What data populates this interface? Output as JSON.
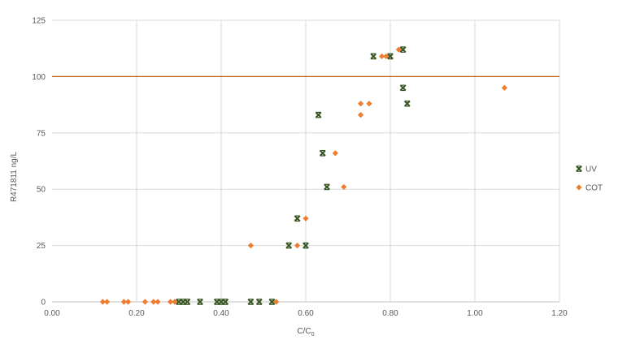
{
  "chart_data": {
    "type": "scatter",
    "title": "",
    "xlabel": "C/C",
    "xlabel_subscript": "0",
    "ylabel": "R471811 ng/L",
    "xlim": [
      0,
      1.2
    ],
    "ylim": [
      0,
      125
    ],
    "x_ticks": [
      0.0,
      0.2,
      0.4,
      0.6,
      0.8,
      1.0,
      1.2
    ],
    "x_tick_labels": [
      "0.00",
      "0.20",
      "0.40",
      "0.60",
      "0.80",
      "1.00",
      "1.20"
    ],
    "y_ticks": [
      0,
      25,
      50,
      75,
      100,
      125
    ],
    "y_tick_labels": [
      "0",
      "25",
      "50",
      "75",
      "100",
      "125"
    ],
    "grid": true,
    "legend_position": "right",
    "reference_line": {
      "y": 100,
      "color": "#c55a11"
    },
    "series": [
      {
        "name": "UV",
        "marker": "x",
        "color": "#375623",
        "points": [
          [
            0.3,
            0
          ],
          [
            0.31,
            0
          ],
          [
            0.32,
            0
          ],
          [
            0.35,
            0
          ],
          [
            0.39,
            0
          ],
          [
            0.4,
            0
          ],
          [
            0.41,
            0
          ],
          [
            0.47,
            0
          ],
          [
            0.49,
            0
          ],
          [
            0.52,
            0
          ],
          [
            0.56,
            25
          ],
          [
            0.6,
            25
          ],
          [
            0.58,
            37
          ],
          [
            0.65,
            51
          ],
          [
            0.64,
            66
          ],
          [
            0.63,
            83
          ],
          [
            0.84,
            88
          ],
          [
            0.83,
            95
          ],
          [
            0.76,
            109
          ],
          [
            0.8,
            109
          ],
          [
            0.83,
            112
          ]
        ]
      },
      {
        "name": "COT",
        "marker": "diamond",
        "color": "#ed7d31",
        "points": [
          [
            0.12,
            0
          ],
          [
            0.13,
            0
          ],
          [
            0.17,
            0
          ],
          [
            0.18,
            0
          ],
          [
            0.22,
            0
          ],
          [
            0.24,
            0
          ],
          [
            0.25,
            0
          ],
          [
            0.28,
            0
          ],
          [
            0.29,
            0
          ],
          [
            0.53,
            0
          ],
          [
            0.47,
            25
          ],
          [
            0.58,
            25
          ],
          [
            0.6,
            37
          ],
          [
            0.69,
            51
          ],
          [
            0.67,
            66
          ],
          [
            0.73,
            83
          ],
          [
            0.73,
            88
          ],
          [
            0.75,
            88
          ],
          [
            0.78,
            109
          ],
          [
            0.79,
            109
          ],
          [
            0.82,
            112
          ],
          [
            1.07,
            95
          ]
        ]
      }
    ]
  }
}
